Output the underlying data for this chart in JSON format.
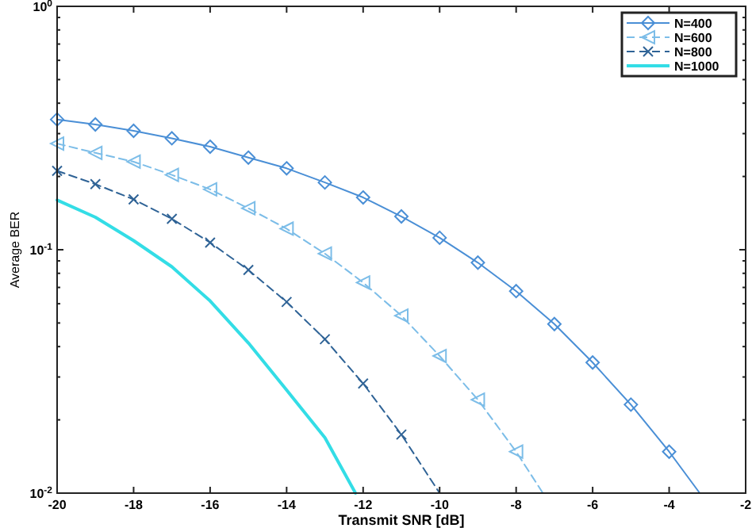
{
  "chart_data": {
    "type": "line",
    "xlabel": "Transmit SNR [dB]",
    "ylabel": "Average BER",
    "log": true,
    "legend": "top right",
    "grid": false,
    "xlim": [
      -20,
      -2
    ],
    "xticks": [
      -20,
      -18,
      -16,
      -14,
      -12,
      -10,
      -8,
      -6,
      -4,
      -2
    ],
    "ylim": [
      0.01,
      1
    ],
    "yticks": [
      {
        "value": 0.01,
        "label": "10$^{-2}$"
      },
      {
        "value": 0.02,
        "label": null
      },
      {
        "value": 0.03,
        "label": null
      },
      {
        "value": 0.04,
        "label": null
      },
      {
        "value": 0.05,
        "label": null
      },
      {
        "value": 0.06,
        "label": null
      },
      {
        "value": 0.07,
        "label": null
      },
      {
        "value": 0.08,
        "label": null
      },
      {
        "value": 0.09,
        "label": null
      },
      {
        "value": 0.1,
        "label": "10$^{-1}$"
      },
      {
        "value": 0.2,
        "label": null
      },
      {
        "value": 0.3,
        "label": null
      },
      {
        "value": 0.4,
        "label": null
      },
      {
        "value": 0.5,
        "label": null
      },
      {
        "value": 0.6,
        "label": null
      },
      {
        "value": 0.7,
        "label": null
      },
      {
        "value": 0.8,
        "label": null
      },
      {
        "value": 0.9,
        "label": null
      },
      {
        "value": 1,
        "label": "10$^{0}$"
      }
    ],
    "series": [
      {
        "name": "N=400",
        "color": "#4a8fd6",
        "marker": "diamond",
        "line_style": "solid",
        "x": [
          -20,
          -19,
          -18,
          -17,
          -16,
          -15,
          -14,
          -13,
          -12,
          -11,
          -10,
          -9,
          -8,
          -7,
          -6,
          -5,
          -4,
          -3.2
        ],
        "values": [
          0.343,
          0.327,
          0.308,
          0.287,
          0.265,
          0.239,
          0.216,
          0.189,
          0.164,
          0.137,
          0.112,
          0.0885,
          0.0676,
          0.0495,
          0.0344,
          0.0231,
          0.0148,
          0.01
        ]
      },
      {
        "name": "N=600",
        "color": "#7cbde8",
        "marker": "triangle",
        "line_style": "dashed",
        "x": [
          -20,
          -19,
          -18,
          -17,
          -16,
          -15,
          -14,
          -13,
          -12,
          -11,
          -10,
          -9,
          -8,
          -7.3
        ],
        "values": [
          0.273,
          0.25,
          0.23,
          0.203,
          0.177,
          0.148,
          0.122,
          0.0964,
          0.0733,
          0.0536,
          0.0366,
          0.0242,
          0.0148,
          0.01
        ]
      },
      {
        "name": "N=800",
        "color": "#2f6396",
        "marker": "cross",
        "line_style": "dashed",
        "x": [
          -20,
          -19,
          -18,
          -17,
          -16,
          -15,
          -14,
          -13,
          -12,
          -11,
          -10
        ],
        "values": [
          0.211,
          0.186,
          0.161,
          0.134,
          0.107,
          0.0826,
          0.061,
          0.0429,
          0.0282,
          0.0174,
          0.01
        ]
      },
      {
        "name": "N=1000",
        "color": "#33dde6",
        "marker": "none",
        "line_style": "solid",
        "x": [
          -20,
          -19,
          -18,
          -17,
          -16,
          -15,
          -14,
          -13,
          -12.2
        ],
        "values": [
          0.16,
          0.136,
          0.109,
          0.0851,
          0.0616,
          0.0414,
          0.0265,
          0.0169,
          0.01
        ]
      }
    ]
  }
}
